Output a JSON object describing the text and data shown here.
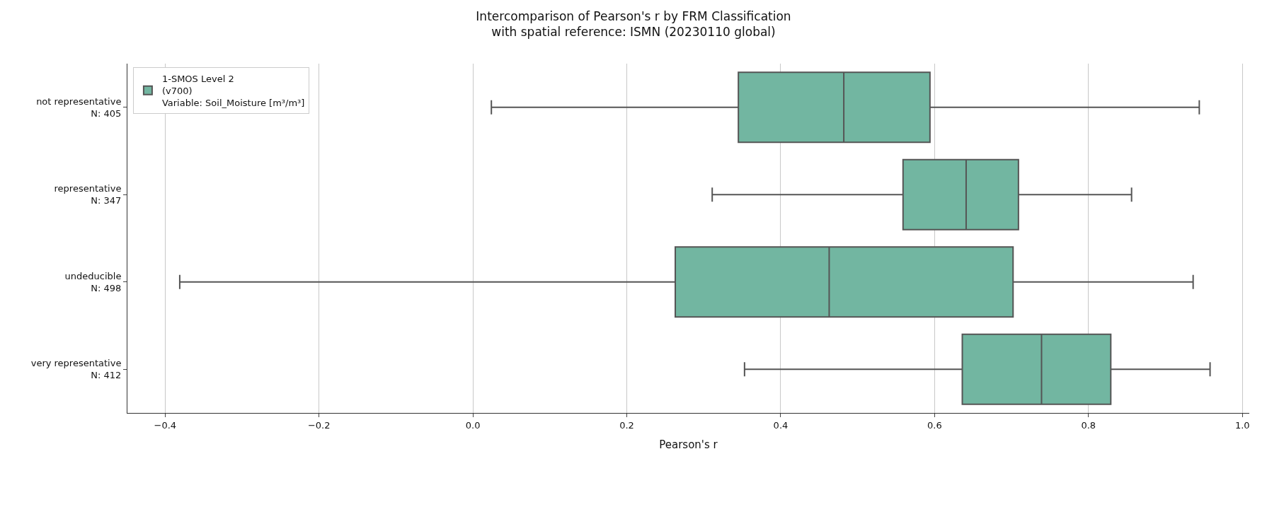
{
  "chart_data": {
    "type": "box",
    "title": "Intercomparison of Pearson's r by FRM Classification\nwith spatial reference: ISMN (20230110 global)",
    "xlabel": "Pearson's r",
    "orientation": "horizontal",
    "categories": [
      "not representative\nN: 405",
      "representative\nN: 347",
      "undeducible\nN: 498",
      "very representative\nN: 412"
    ],
    "series": [
      {
        "name": "1-SMOS Level 2\n(v700)\nVariable: Soil_Moisture [m³/m³]",
        "color": "#72b6a1",
        "boxes": [
          {
            "low": 0.024,
            "q1": 0.345,
            "median": 0.482,
            "q3": 0.594,
            "high": 0.944
          },
          {
            "low": 0.311,
            "q1": 0.559,
            "median": 0.641,
            "q3": 0.709,
            "high": 0.856
          },
          {
            "low": -0.381,
            "q1": 0.263,
            "median": 0.463,
            "q3": 0.702,
            "high": 0.936
          },
          {
            "low": 0.353,
            "q1": 0.636,
            "median": 0.739,
            "q3": 0.829,
            "high": 0.958
          }
        ]
      }
    ],
    "xlim": [
      -0.449,
      1.009
    ],
    "xticks": [
      {
        "value": -0.4,
        "label": "−0.4"
      },
      {
        "value": -0.2,
        "label": "−0.2"
      },
      {
        "value": 0,
        "label": "0.0"
      },
      0.2,
      0.4,
      0.6,
      0.8,
      {
        "value": 1,
        "label": "1.0"
      }
    ],
    "grid": "x",
    "legend": "top left"
  }
}
